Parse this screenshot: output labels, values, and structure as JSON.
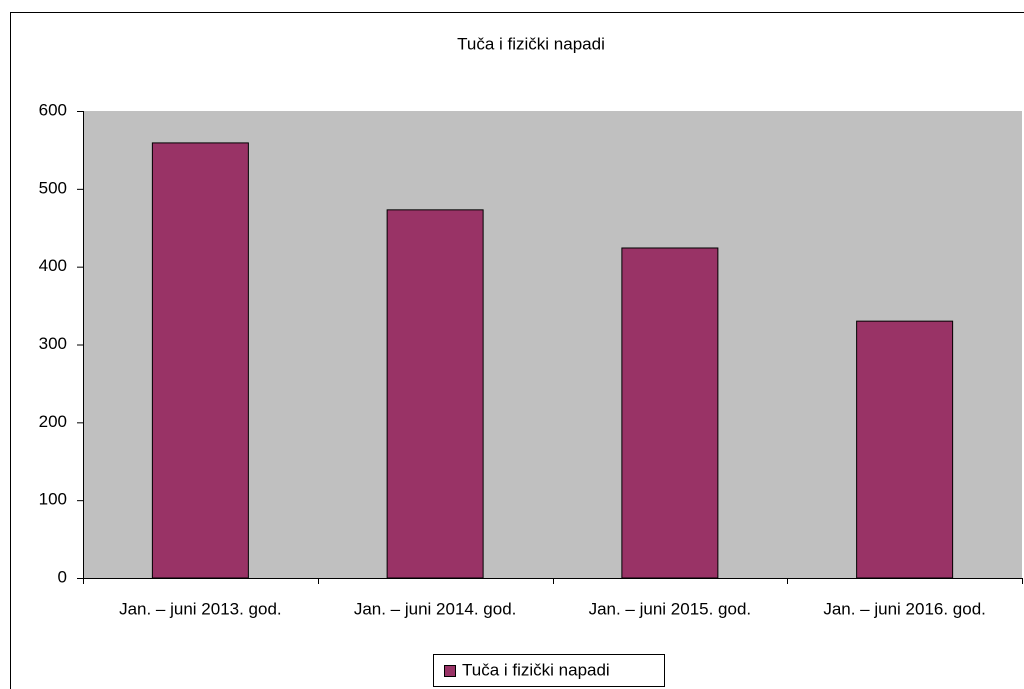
{
  "chart_data": {
    "type": "bar",
    "title": "Tuča i fizički napadi",
    "categories": [
      "Jan. – juni 2013. god.",
      "Jan. – juni 2014. god.",
      "Jan. – juni 2015. god.",
      "Jan. – juni 2016. god."
    ],
    "series": [
      {
        "name": "Tuča i fizički napadi",
        "color": "#993366",
        "values": [
          559,
          473,
          424,
          330
        ]
      }
    ],
    "ylim": [
      0,
      600
    ],
    "yticks": [
      0,
      100,
      200,
      300,
      400,
      500,
      600
    ],
    "grid": false,
    "legend": "bottom",
    "plot_background": "#c0c0c0"
  }
}
